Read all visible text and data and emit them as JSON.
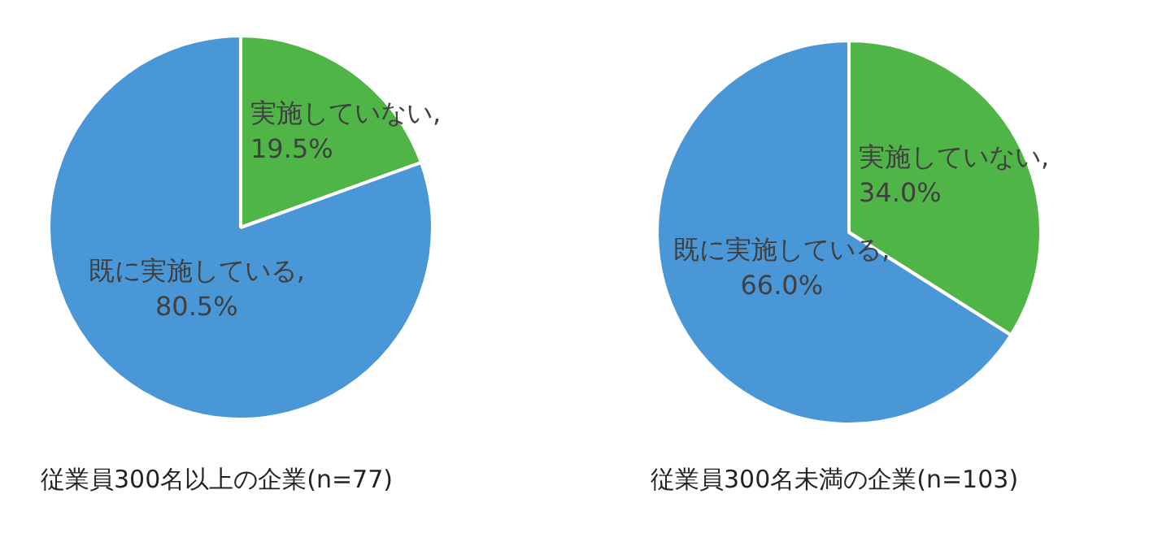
{
  "chart_data": [
    {
      "type": "pie",
      "title": "従業員300名以上の企業(n=77)",
      "categories": [
        "実施していない",
        "既に実施している"
      ],
      "values": [
        19.5,
        80.5
      ],
      "colors": [
        "#50b547",
        "#4a97d8"
      ],
      "value_labels": [
        "19.5%",
        "80.5%"
      ],
      "annotations": [
        ","
      ],
      "legend": false
    },
    {
      "type": "pie",
      "title": "従業員300名未満の企業(n=103)",
      "categories": [
        "実施していない",
        "既に実施している"
      ],
      "values": [
        34.0,
        66.0
      ],
      "colors": [
        "#50b547",
        "#4a97d8"
      ],
      "value_labels": [
        "34.0%",
        "66.0%"
      ],
      "annotations": [
        ","
      ],
      "legend": false
    }
  ]
}
